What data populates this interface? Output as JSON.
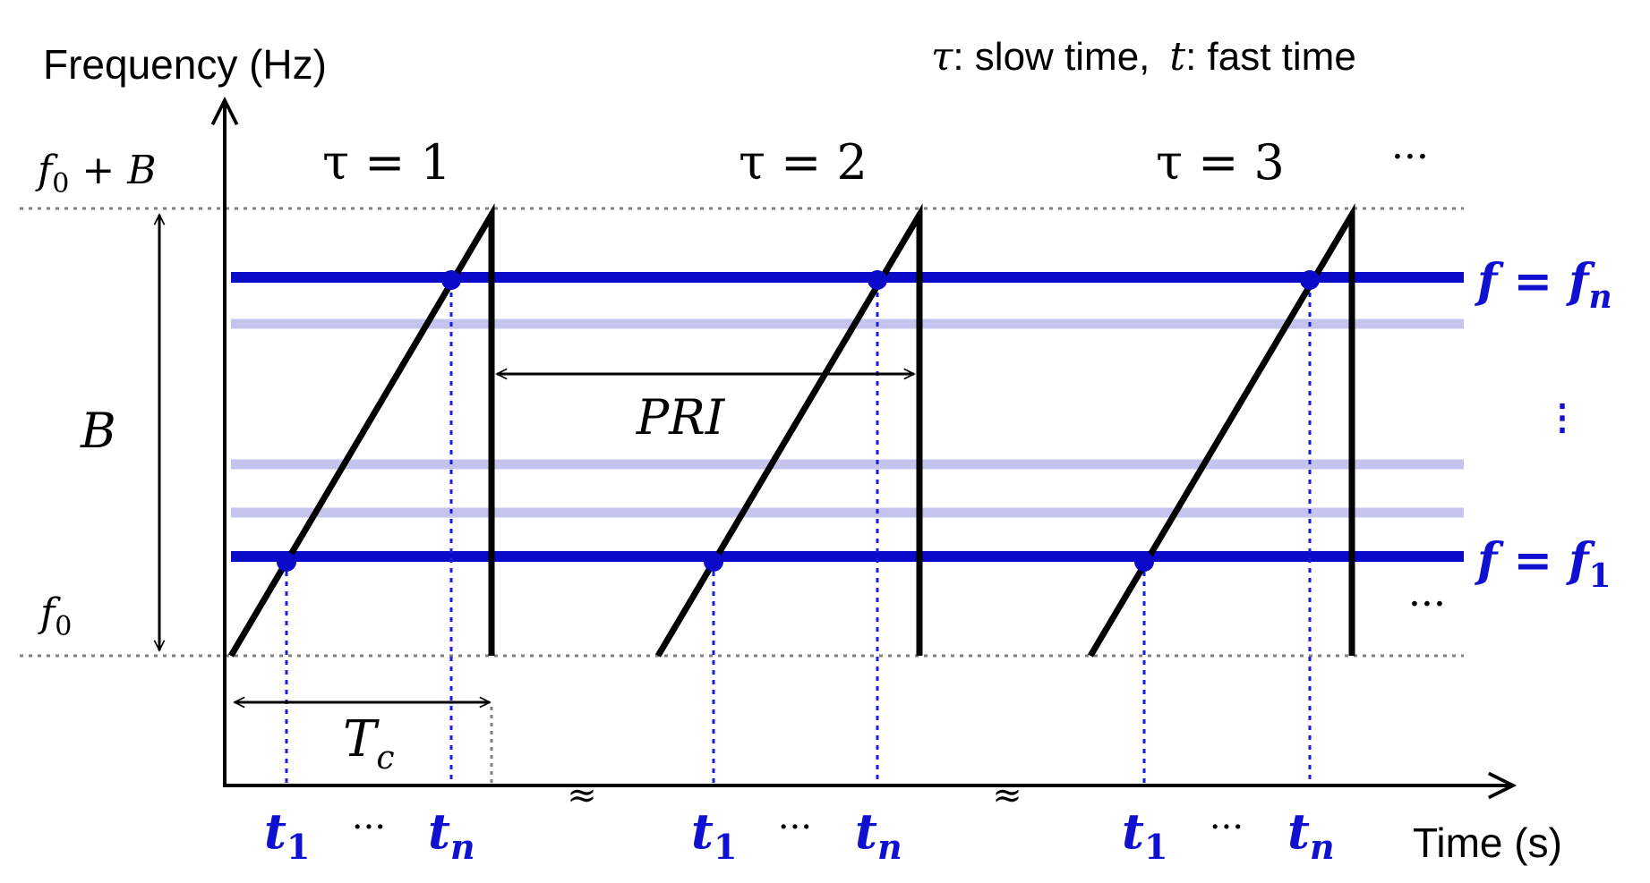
{
  "axes": {
    "y_label": "Frequency (Hz)",
    "x_label": "Time (s)"
  },
  "legend": {
    "tau_symbol": "τ",
    "tau_desc": ": slow time,",
    "t_symbol": "t",
    "t_desc": ": fast time"
  },
  "levels": {
    "top": {
      "base": "f",
      "sub": "0",
      "suffix": " + B"
    },
    "bottom": {
      "base": "f",
      "sub": "0"
    },
    "bandwidth": "B"
  },
  "chirps": [
    {
      "label": "τ = 1"
    },
    {
      "label": "τ = 2"
    },
    {
      "label": "τ = 3"
    }
  ],
  "more_chirps": "···",
  "more_lines": "···",
  "pri_label": "PRI",
  "chirp_duration": {
    "base": "T",
    "sub": "c"
  },
  "freq_lines": [
    {
      "lhs": "f = f",
      "sub": "n"
    },
    {
      "lhs": "f = f",
      "sub": "1"
    }
  ],
  "vertical_ellipsis": "⋮",
  "samples": {
    "first": "t",
    "first_sub": "1",
    "middle": "···",
    "last": "t",
    "last_sub": "n"
  },
  "axis_break": "≈",
  "colors": {
    "line": "#0a0ac8",
    "faint": "#c4c4ee",
    "black": "#000000",
    "grid": "#808080"
  }
}
